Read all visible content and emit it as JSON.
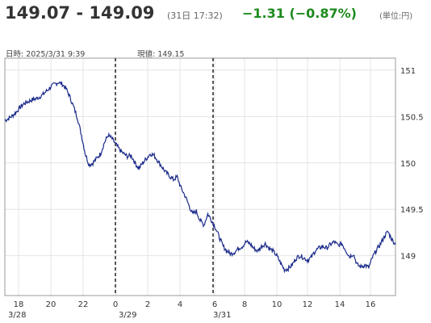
{
  "header": {
    "price_range": "149.07 - 149.09",
    "timestamp": "(31日 17:32)",
    "change": "−1.31 (−0.87%)",
    "unit": "(単位:円)",
    "change_color": "#1d8a1d"
  },
  "info": {
    "datetime": "日時: 2025/3/31  9:39",
    "current": "現値: 149.15"
  },
  "chart_data": {
    "type": "line",
    "title": "",
    "xlabel": "",
    "ylabel": "",
    "ylim": [
      148.57,
      151.13
    ],
    "y_ticks": [
      "151",
      "150.5",
      "150",
      "149.5",
      "149"
    ],
    "y_tick_values": [
      151,
      150.5,
      150,
      149.5,
      149
    ],
    "x_ticks": [
      "18",
      "20",
      "22",
      "0",
      "2",
      "4",
      "6",
      "8",
      "10",
      "12",
      "14",
      "16"
    ],
    "date_labels": [
      "3/28",
      "3/29",
      "3/31"
    ],
    "session_dividers": [
      "3/29 0:00",
      "3/31 6:00"
    ],
    "line_color": "#1a2a8a",
    "grid": true,
    "series": [
      {
        "name": "",
        "values": [
          150.46,
          150.48,
          150.51,
          150.55,
          150.6,
          150.64,
          150.66,
          150.68,
          150.69,
          150.71,
          150.74,
          150.78,
          150.82,
          150.85,
          150.87,
          150.85,
          150.8,
          150.71,
          150.6,
          150.48,
          150.3,
          150.1,
          149.98,
          150.0,
          150.05,
          150.1,
          150.22,
          150.3,
          150.26,
          150.2,
          150.14,
          150.1,
          150.07,
          150.08,
          150.0,
          149.94,
          150.0,
          150.05,
          150.1,
          150.08,
          150.02,
          149.96,
          149.9,
          149.86,
          149.82,
          149.85,
          149.73,
          149.65,
          149.55,
          149.45,
          149.48,
          149.38,
          149.33,
          149.45,
          149.38,
          149.3,
          149.2,
          149.1,
          149.05,
          149.02,
          149.04,
          149.08,
          149.1,
          149.15,
          149.13,
          149.08,
          149.05,
          149.1,
          149.13,
          149.08,
          149.05,
          149.0,
          148.92,
          148.85,
          148.86,
          148.9,
          148.97,
          149.0,
          148.98,
          148.95,
          148.98,
          149.05,
          149.08,
          149.1,
          149.08,
          149.12,
          149.15,
          149.11,
          149.13,
          149.06,
          148.99,
          149.02,
          148.9,
          148.88,
          148.9,
          148.87,
          148.98,
          149.06,
          149.12,
          149.2,
          149.26,
          149.18,
          149.12
        ]
      }
    ]
  }
}
